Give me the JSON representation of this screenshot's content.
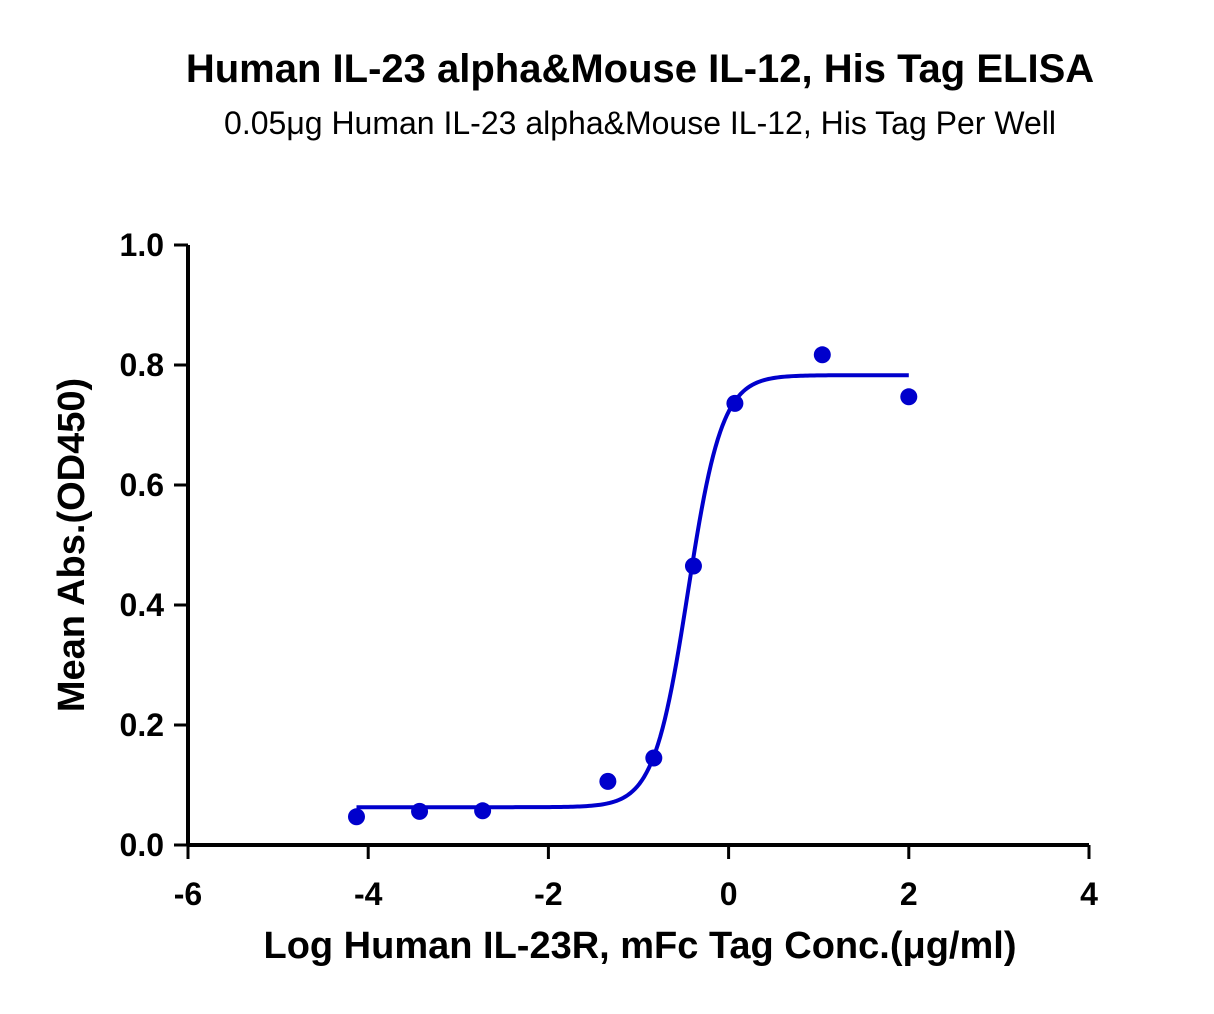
{
  "chart_data": {
    "type": "scatter",
    "title": "Human IL-23 alpha&Mouse IL-12, His Tag ELISA",
    "subtitle": "0.05μg Human IL-23 alpha&Mouse IL-12, His Tag Per Well",
    "xlabel": "Log Human IL-23R,  mFc Tag Conc.(μg/ml)",
    "ylabel": "Mean Abs.(OD450)",
    "xlim": [
      -6,
      4
    ],
    "ylim": [
      0,
      1.0
    ],
    "x_ticks": [
      "-6",
      "-4",
      "-2",
      "0",
      "2",
      "4"
    ],
    "y_ticks": [
      "0.0",
      "0.2",
      "0.4",
      "0.6",
      "0.8",
      "1.0"
    ],
    "grid": false,
    "series_color": "#0000CC",
    "points": [
      {
        "x": -4.13,
        "y": 0.047
      },
      {
        "x": -3.43,
        "y": 0.056
      },
      {
        "x": -2.73,
        "y": 0.057
      },
      {
        "x": -1.34,
        "y": 0.106
      },
      {
        "x": -0.83,
        "y": 0.145
      },
      {
        "x": -0.39,
        "y": 0.465
      },
      {
        "x": 0.07,
        "y": 0.736
      },
      {
        "x": 1.04,
        "y": 0.817
      },
      {
        "x": 2.0,
        "y": 0.747
      }
    ],
    "fit": {
      "model": "4PL",
      "bottom": 0.063,
      "top": 0.783,
      "logEC50": -0.45,
      "hill": 2.3,
      "x_range": [
        -4.13,
        2.0
      ]
    }
  }
}
